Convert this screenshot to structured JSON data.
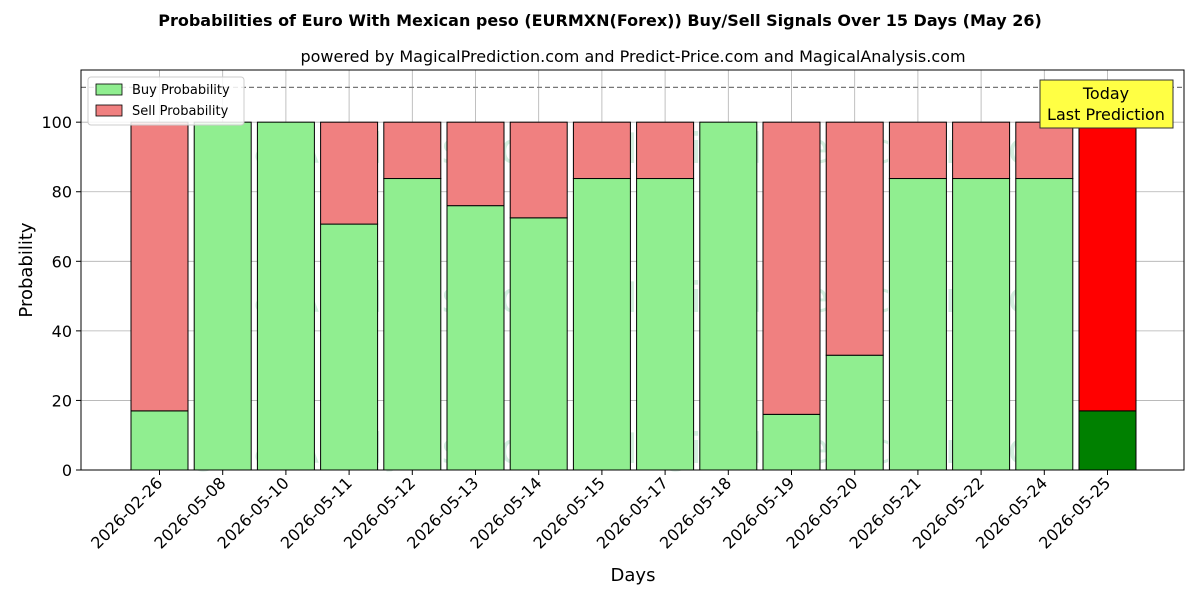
{
  "chart_data": {
    "type": "bar",
    "stacked": true,
    "title": "Probabilities of Euro With Mexican peso (EURMXN(Forex)) Buy/Sell Signals Over 15 Days (May 26)",
    "subtitle": "powered by MagicalPrediction.com and Predict-Price.com and MagicalAnalysis.com",
    "xlabel": "Days",
    "ylabel": "Probability",
    "ylim": [
      0,
      115
    ],
    "yticks": [
      0,
      20,
      40,
      60,
      80,
      100
    ],
    "reference_line": 110,
    "grid": true,
    "legend_position": "top-left",
    "categories": [
      "2026-02-26",
      "2026-05-08",
      "2026-05-10",
      "2026-05-11",
      "2026-05-12",
      "2026-05-13",
      "2026-05-14",
      "2026-05-15",
      "2026-05-17",
      "2026-05-18",
      "2026-05-19",
      "2026-05-20",
      "2026-05-21",
      "2026-05-22",
      "2026-05-24",
      "2026-05-25"
    ],
    "series": [
      {
        "name": "Buy Probability",
        "color": "#90ee90",
        "highlight_color": "#008000",
        "values": [
          17,
          100,
          100,
          70.7,
          83.8,
          76,
          72.5,
          83.8,
          83.8,
          100,
          16,
          33,
          83.8,
          83.8,
          83.8,
          17
        ]
      },
      {
        "name": "Sell Probability",
        "color": "#f08080",
        "highlight_color": "#ff0000",
        "values": [
          83,
          0,
          0,
          29.3,
          16.2,
          24,
          27.5,
          16.2,
          16.2,
          0,
          84,
          67,
          16.2,
          16.2,
          16.2,
          83
        ]
      }
    ],
    "highlight_index": 15,
    "today_box": {
      "line1": "Today",
      "line2": "Last Prediction",
      "color": "#ffff44"
    },
    "watermarks": [
      "MagicalAnalysis.com",
      "MagicalPrediction.com"
    ]
  }
}
